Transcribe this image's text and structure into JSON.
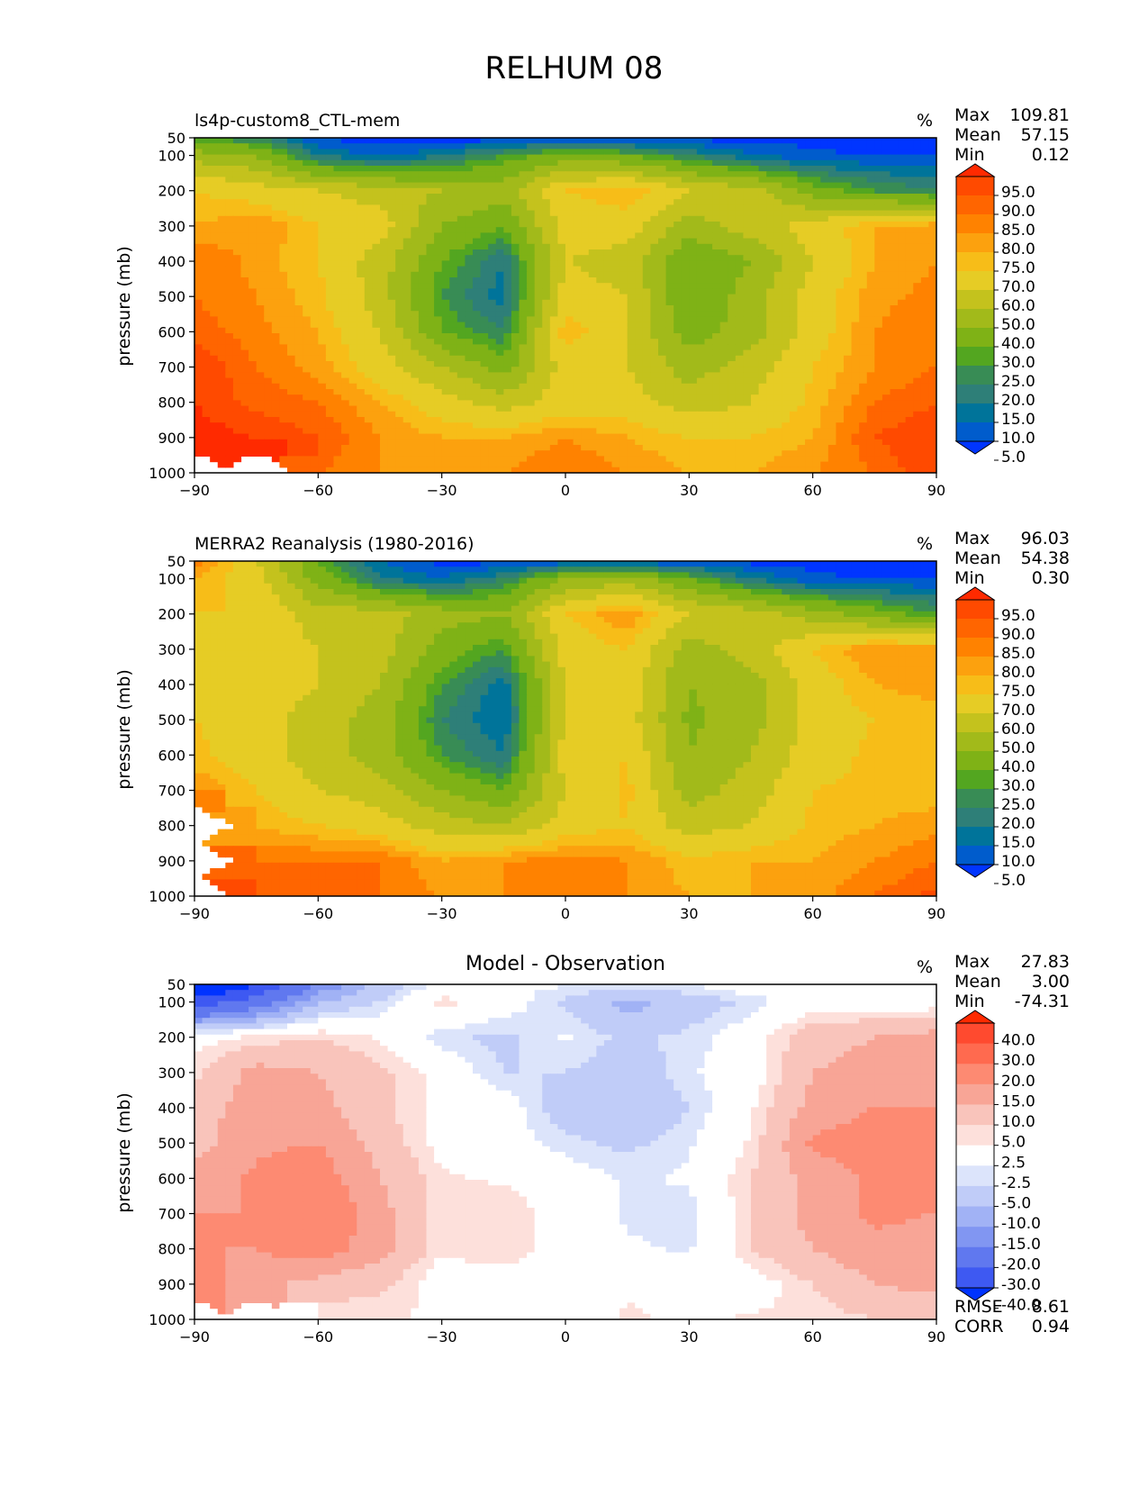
{
  "figure": {
    "title": "RELHUM 08"
  },
  "chart_data": [
    {
      "type": "heatmap",
      "subtype": "filled-contour",
      "title": "ls4p-custom8_CTL-mem",
      "units": "%",
      "ylabel": "pressure (mb)",
      "xlabel": "",
      "xlim": [
        -90,
        90
      ],
      "ylim": [
        1000,
        50
      ],
      "xticks": [
        "−90",
        "−60",
        "−30",
        "0",
        "30",
        "60",
        "90"
      ],
      "yticks": [
        "50",
        "100",
        "200",
        "300",
        "400",
        "500",
        "600",
        "700",
        "800",
        "900",
        "1000"
      ],
      "stats": [
        {
          "label": "Max",
          "value": "109.81"
        },
        {
          "label": "Mean",
          "value": "57.15"
        },
        {
          "label": "Min",
          "value": "0.12"
        }
      ],
      "colorbar": {
        "labels": [
          "95.0",
          "90.0",
          "85.0",
          "80.0",
          "75.0",
          "70.0",
          "60.0",
          "50.0",
          "40.0",
          "30.0",
          "25.0",
          "20.0",
          "15.0",
          "10.0",
          "5.0"
        ],
        "colors": [
          "#ff2a00",
          "#ff4a00",
          "#ff6500",
          "#ff8200",
          "#fca10e",
          "#f7bd18",
          "#e6cc25",
          "#c4c21d",
          "#a2ba1a",
          "#7fb216",
          "#53a620",
          "#388c55",
          "#2e7f78",
          "#00749a",
          "#005ccc",
          "#0035ff"
        ]
      },
      "field": {
        "lat": [
          -90,
          -75,
          -60,
          -45,
          -30,
          -15,
          0,
          15,
          30,
          45,
          60,
          75,
          90
        ],
        "plev": [
          50,
          100,
          200,
          300,
          400,
          500,
          600,
          700,
          800,
          900,
          1000
        ],
        "values": [
          [
            25,
            20,
            5,
            2,
            2,
            2,
            3,
            3,
            3,
            3,
            3,
            2,
            2
          ],
          [
            45,
            40,
            15,
            8,
            15,
            25,
            35,
            30,
            20,
            10,
            6,
            5,
            5
          ],
          [
            70,
            65,
            60,
            55,
            50,
            45,
            70,
            75,
            60,
            55,
            35,
            25,
            20
          ],
          [
            75,
            80,
            70,
            65,
            40,
            30,
            65,
            65,
            45,
            55,
            65,
            75,
            78
          ],
          [
            85,
            78,
            70,
            55,
            30,
            15,
            60,
            55,
            30,
            40,
            60,
            75,
            80
          ],
          [
            85,
            80,
            72,
            55,
            25,
            12,
            65,
            60,
            30,
            45,
            65,
            78,
            82
          ],
          [
            88,
            82,
            75,
            60,
            30,
            20,
            75,
            60,
            35,
            45,
            65,
            80,
            85
          ],
          [
            95,
            85,
            78,
            65,
            50,
            35,
            65,
            60,
            45,
            55,
            70,
            80,
            85
          ],
          [
            95,
            88,
            85,
            75,
            65,
            55,
            65,
            65,
            55,
            60,
            72,
            85,
            90
          ],
          [
            98,
            95,
            90,
            80,
            75,
            75,
            80,
            75,
            70,
            70,
            75,
            90,
            95
          ],
          [
            null,
            null,
            85,
            80,
            78,
            80,
            85,
            80,
            75,
            75,
            80,
            85,
            95
          ]
        ]
      }
    },
    {
      "type": "heatmap",
      "subtype": "filled-contour",
      "title": "MERRA2 Reanalysis (1980-2016)",
      "units": "%",
      "ylabel": "pressure (mb)",
      "xlabel": "",
      "xlim": [
        -90,
        90
      ],
      "ylim": [
        1000,
        50
      ],
      "xticks": [
        "−90",
        "−60",
        "−30",
        "0",
        "30",
        "60",
        "90"
      ],
      "yticks": [
        "50",
        "100",
        "200",
        "300",
        "400",
        "500",
        "600",
        "700",
        "800",
        "900",
        "1000"
      ],
      "stats": [
        {
          "label": "Max",
          "value": "96.03"
        },
        {
          "label": "Mean",
          "value": "54.38"
        },
        {
          "label": "Min",
          "value": "0.30"
        }
      ],
      "colorbar": {
        "labels": [
          "95.0",
          "90.0",
          "85.0",
          "80.0",
          "75.0",
          "70.0",
          "60.0",
          "50.0",
          "40.0",
          "30.0",
          "25.0",
          "20.0",
          "15.0",
          "10.0",
          "5.0"
        ],
        "colors": [
          "#ff2a00",
          "#ff4a00",
          "#ff6500",
          "#ff8200",
          "#fca10e",
          "#f7bd18",
          "#e6cc25",
          "#c4c21d",
          "#a2ba1a",
          "#7fb216",
          "#53a620",
          "#388c55",
          "#2e7f78",
          "#00749a",
          "#005ccc",
          "#0035ff"
        ]
      },
      "field": {
        "lat": [
          -90,
          -75,
          -60,
          -45,
          -30,
          -15,
          0,
          15,
          30,
          45,
          60,
          75,
          90
        ],
        "plev": [
          50,
          100,
          200,
          300,
          400,
          500,
          600,
          700,
          800,
          900,
          1000
        ],
        "values": [
          [
            85,
            60,
            30,
            10,
            3,
            3,
            5,
            5,
            5,
            3,
            3,
            2,
            2
          ],
          [
            75,
            65,
            35,
            15,
            10,
            20,
            40,
            45,
            30,
            15,
            6,
            5,
            5
          ],
          [
            70,
            70,
            55,
            55,
            45,
            40,
            70,
            80,
            60,
            55,
            45,
            35,
            25
          ],
          [
            70,
            65,
            60,
            55,
            35,
            25,
            65,
            70,
            45,
            55,
            70,
            80,
            80
          ],
          [
            70,
            65,
            60,
            50,
            25,
            12,
            60,
            65,
            40,
            45,
            65,
            75,
            78
          ],
          [
            70,
            65,
            55,
            45,
            20,
            10,
            60,
            65,
            38,
            45,
            65,
            70,
            72
          ],
          [
            72,
            65,
            55,
            45,
            25,
            15,
            65,
            70,
            40,
            50,
            65,
            72,
            72
          ],
          [
            80,
            70,
            60,
            55,
            40,
            30,
            60,
            72,
            45,
            55,
            70,
            72,
            72
          ],
          [
            null,
            75,
            70,
            65,
            55,
            50,
            65,
            70,
            55,
            60,
            72,
            75,
            78
          ],
          [
            null,
            85,
            85,
            85,
            75,
            80,
            82,
            80,
            72,
            75,
            75,
            80,
            85
          ],
          [
            null,
            90,
            90,
            85,
            80,
            80,
            85,
            80,
            75,
            75,
            78,
            85,
            92
          ]
        ]
      }
    },
    {
      "type": "heatmap",
      "subtype": "filled-contour",
      "title": "Model - Observation",
      "units": "%",
      "ylabel": "pressure (mb)",
      "xlabel": "",
      "xlim": [
        -90,
        90
      ],
      "ylim": [
        1000,
        50
      ],
      "xticks": [
        "−90",
        "−60",
        "−30",
        "0",
        "30",
        "60",
        "90"
      ],
      "yticks": [
        "50",
        "100",
        "200",
        "300",
        "400",
        "500",
        "600",
        "700",
        "800",
        "900",
        "1000"
      ],
      "stats": [
        {
          "label": "Max",
          "value": "27.83"
        },
        {
          "label": "Mean",
          "value": "3.00"
        },
        {
          "label": "Min",
          "value": "-74.31"
        }
      ],
      "metrics": [
        {
          "label": "RMSE",
          "value": "8.61"
        },
        {
          "label": "CORR",
          "value": "0.94"
        }
      ],
      "colorbar": {
        "labels": [
          "40.0",
          "30.0",
          "20.0",
          "15.0",
          "10.0",
          "5.0",
          "2.5",
          "-2.5",
          "-5.0",
          "-10.0",
          "-15.0",
          "-20.0",
          "-30.0",
          "-40.0"
        ],
        "colors": [
          "#ff2a00",
          "#ff4a2f",
          "#ff6a4f",
          "#fd8a72",
          "#f8a596",
          "#f9c4bb",
          "#fde0db",
          "#ffffff",
          "#dce4fb",
          "#c0ccf8",
          "#a1b2f5",
          "#8196f2",
          "#6078ef",
          "#3e59f2",
          "#0033ff"
        ]
      },
      "field": {
        "lat": [
          -90,
          -75,
          -60,
          -45,
          -30,
          -15,
          0,
          15,
          30,
          45,
          60,
          75,
          90
        ],
        "plev": [
          50,
          100,
          200,
          300,
          400,
          500,
          600,
          700,
          800,
          900,
          1000
        ],
        "values": [
          [
            -60,
            -40,
            -20,
            -8,
            -2,
            -2,
            -2,
            -2,
            -2,
            0,
            0,
            0,
            0
          ],
          [
            -35,
            -25,
            -10,
            -5,
            4,
            0,
            -6,
            -12,
            -8,
            -4,
            0,
            0,
            0
          ],
          [
            1,
            3,
            5,
            2,
            -4,
            -6,
            -2,
            -6,
            -4,
            0,
            8,
            10,
            12
          ],
          [
            4,
            12,
            10,
            6,
            1,
            -5,
            -5,
            -8,
            -3,
            0,
            10,
            12,
            15
          ],
          [
            8,
            12,
            12,
            6,
            1,
            0,
            -8,
            -10,
            -5,
            2,
            12,
            15,
            15
          ],
          [
            8,
            14,
            15,
            8,
            1,
            0,
            -4,
            -6,
            -3,
            3,
            16,
            18,
            16
          ],
          [
            12,
            16,
            18,
            10,
            3,
            2,
            0,
            -3,
            -2,
            5,
            12,
            16,
            15
          ],
          [
            15,
            15,
            20,
            12,
            3,
            5,
            0,
            -3,
            -4,
            5,
            12,
            16,
            15
          ],
          [
            15,
            15,
            18,
            12,
            3,
            5,
            0,
            -2,
            -3,
            5,
            10,
            14,
            12
          ],
          [
            18,
            12,
            8,
            6,
            0,
            0,
            0,
            2,
            0,
            0,
            5,
            10,
            12
          ],
          [
            null,
            null,
            2,
            3,
            2,
            2,
            0,
            3,
            2,
            3,
            3,
            5,
            5
          ]
        ]
      }
    }
  ]
}
